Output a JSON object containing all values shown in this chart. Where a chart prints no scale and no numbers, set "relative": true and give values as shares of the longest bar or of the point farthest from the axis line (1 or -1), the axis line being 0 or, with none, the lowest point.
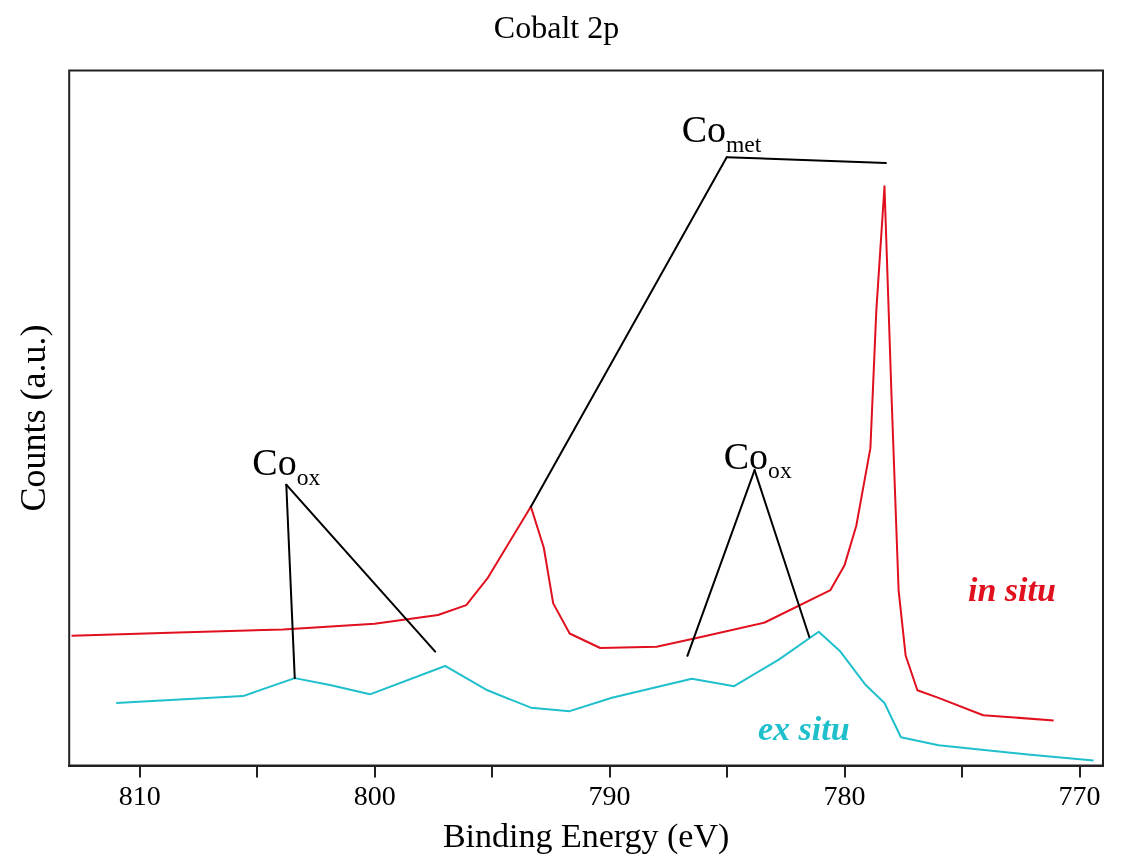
{
  "chart_data": {
    "type": "line",
    "title": "Cobalt 2p",
    "xlabel": "Binding Energy (eV)",
    "ylabel": "Counts (a.u.)",
    "relative": true,
    "legend": false,
    "marker": "none",
    "line_style": "solid",
    "xlim": [
      813,
      769
    ],
    "xticks": [
      810,
      {
        "value": 805,
        "label": null
      },
      800,
      {
        "value": 795,
        "label": null
      },
      790,
      {
        "value": 785,
        "label": null
      },
      780,
      {
        "value": 775,
        "label": null
      },
      770
    ],
    "series": [
      {
        "name": "in situ",
        "color": "#e0101e",
        "x": [
          812.9,
          808,
          803.9,
          800,
          797.3,
          796.1,
          795.2,
          794.5,
          793.35,
          792.8,
          792.4,
          791.7,
          790.4,
          788.0,
          786.2,
          783.4,
          780.6,
          780.0,
          779.5,
          778.9,
          778.65,
          778.3,
          778.0,
          777.7,
          777.4,
          776.9,
          776.0,
          774.1,
          771.1
        ],
        "values": [
          0.224,
          0.23,
          0.235,
          0.245,
          0.26,
          0.277,
          0.323,
          0.37,
          0.447,
          0.376,
          0.28,
          0.228,
          0.203,
          0.205,
          0.221,
          0.247,
          0.303,
          0.346,
          0.414,
          0.548,
          0.784,
          1.0,
          0.637,
          0.303,
          0.19,
          0.13,
          0.117,
          0.087,
          0.078
        ]
      },
      {
        "name": "ex situ",
        "color": "#1fbfcc",
        "x": [
          811.0,
          805.6,
          803.4,
          801.9,
          800.2,
          797.0,
          795.2,
          793.35,
          791.7,
          789.9,
          786.5,
          784.7,
          782.8,
          781.1,
          780.2,
          779.1,
          778.3,
          777.6,
          776.0,
          772.2,
          769.4
        ],
        "values": [
          0.108,
          0.12,
          0.151,
          0.139,
          0.123,
          0.172,
          0.13,
          0.1,
          0.094,
          0.117,
          0.15,
          0.137,
          0.183,
          0.231,
          0.198,
          0.139,
          0.108,
          0.049,
          0.035,
          0.019,
          0.009
        ]
      }
    ],
    "annotations": [
      {
        "text": "Co$_{met}$",
        "x": 793.35,
        "y": 0.447
      },
      {
        "text": "Co$_{ox}$",
        "x": 803.4,
        "y": 0.151
      },
      {
        "text": "Co$_{ox}$",
        "x": 781.5,
        "y": 0.222
      }
    ]
  }
}
